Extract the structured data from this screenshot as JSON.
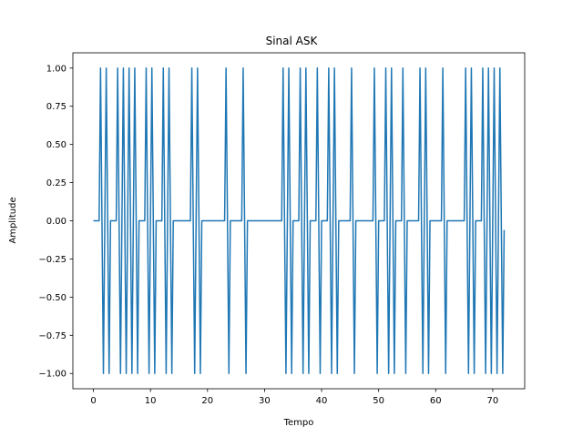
{
  "chart_data": {
    "type": "line",
    "title": "Sinal ASK",
    "xlabel": "Tempo",
    "ylabel": "Amplitude",
    "xlim": [
      -3.6,
      75.6
    ],
    "ylim": [
      -1.1,
      1.1
    ],
    "xticks": [
      0,
      10,
      20,
      30,
      40,
      50,
      60,
      70
    ],
    "xtick_labels": [
      "0",
      "10",
      "20",
      "30",
      "40",
      "50",
      "60",
      "70"
    ],
    "yticks": [
      -1.0,
      -0.75,
      -0.5,
      -0.25,
      0.0,
      0.25,
      0.5,
      0.75,
      1.0
    ],
    "ytick_labels": [
      "−1.00",
      "−0.75",
      "−0.50",
      "−0.25",
      "0.00",
      "0.25",
      "0.50",
      "0.75",
      "1.00"
    ],
    "grid": false,
    "legend": "none",
    "line_color": "#1f77b4",
    "series": [
      {
        "x": [
          0,
          1,
          1.25,
          1.5,
          1.75,
          2,
          2.25,
          2.5,
          2.75,
          3,
          4,
          4.25,
          4.5,
          4.75,
          5,
          5.25,
          5.5,
          5.75,
          6,
          6.25,
          6.5,
          6.75,
          7,
          7.25,
          7.5,
          7.75,
          8,
          9,
          9.25,
          9.5,
          9.75,
          10,
          10.25,
          10.5,
          10.75,
          11,
          12,
          12.25,
          12.5,
          12.75,
          13,
          13.25,
          13.5,
          13.75,
          14,
          17,
          17.25,
          17.5,
          17.75,
          18,
          18.25,
          18.5,
          18.75,
          19,
          23,
          23.25,
          23.5,
          23.75,
          24,
          26,
          26.25,
          26.5,
          26.75,
          27,
          33,
          33.25,
          33.5,
          33.75,
          34,
          34.25,
          34.5,
          34.75,
          35,
          36,
          36.25,
          36.5,
          36.75,
          37,
          37.25,
          37.5,
          37.75,
          38,
          39,
          39.25,
          39.5,
          39.75,
          40,
          41,
          41.25,
          41.5,
          41.75,
          42,
          42.25,
          42.5,
          42.75,
          43,
          45,
          45.25,
          45.5,
          45.75,
          46,
          49,
          49.25,
          49.5,
          49.75,
          50,
          51,
          51.25,
          51.5,
          51.75,
          52,
          52.25,
          52.5,
          52.75,
          53,
          54,
          54.25,
          54.5,
          54.75,
          55,
          57,
          57.25,
          57.5,
          57.75,
          58,
          58.25,
          58.5,
          58.75,
          59,
          61,
          61.25,
          61.5,
          61.75,
          62,
          65,
          65.25,
          65.5,
          65.75,
          66,
          66.25,
          66.5,
          66.75,
          67,
          68,
          68.25,
          68.5,
          68.75,
          69,
          69.25,
          69.5,
          69.75,
          70,
          70.25,
          70.5,
          70.75,
          71,
          71.25,
          71.5,
          71.75,
          72
        ],
        "y": [
          0,
          0,
          1,
          0,
          -1,
          0,
          1,
          0,
          -1,
          0,
          0,
          1,
          0,
          -1,
          0,
          1,
          0,
          -1,
          0,
          1,
          0,
          -1,
          0,
          1,
          0,
          -1,
          0,
          0,
          1,
          0,
          -1,
          0,
          1,
          0,
          -1,
          0,
          0,
          1,
          0,
          -1,
          0,
          1,
          0,
          -1,
          0,
          0,
          1,
          0,
          -1,
          0,
          1,
          0,
          -1,
          0,
          0,
          1,
          0,
          -1,
          0,
          0,
          1,
          0,
          -1,
          0,
          0,
          1,
          0,
          -1,
          0,
          1,
          0,
          -1,
          0,
          0,
          1,
          0,
          -1,
          0,
          1,
          0,
          -1,
          0,
          0,
          1,
          0,
          -1,
          0,
          0,
          1,
          0,
          -1,
          0,
          1,
          0,
          -1,
          0,
          0,
          1,
          0,
          -1,
          0,
          0,
          1,
          0,
          -1,
          0,
          0,
          1,
          0,
          -1,
          0,
          1,
          0,
          -1,
          0,
          0,
          1,
          0,
          -1,
          0,
          0,
          1,
          0,
          -1,
          0,
          1,
          0,
          -1,
          0,
          0,
          1,
          0,
          -1,
          0,
          0,
          1,
          0,
          -1,
          0,
          1,
          0,
          -1,
          0,
          0,
          1,
          0,
          -1,
          0,
          1,
          0,
          -1,
          0,
          1,
          0,
          -1,
          0,
          1,
          0,
          -1,
          -0.06
        ]
      }
    ]
  }
}
